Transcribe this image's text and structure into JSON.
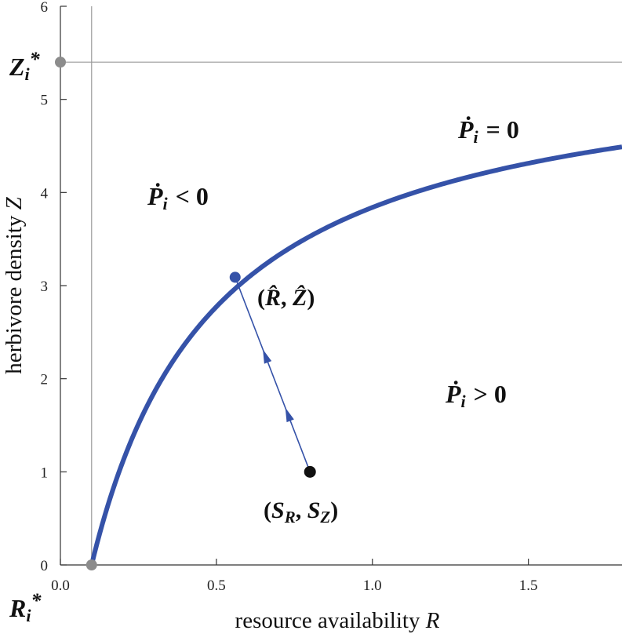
{
  "chart_data": {
    "type": "line",
    "xlabel": "resource availability",
    "xlabel_var": "R",
    "ylabel": "herbivore density",
    "ylabel_var": "Z",
    "xlim": [
      0,
      1.8
    ],
    "ylim": [
      0,
      6
    ],
    "xticks": [
      "0.0",
      "0.5",
      "1.0",
      "1.5"
    ],
    "yticks": [
      "0",
      "1",
      "2",
      "3",
      "4",
      "5",
      "6"
    ],
    "grid": false,
    "colors": {
      "curve": "#3552a8",
      "marker_gray": "#8c8c8c",
      "point": "#111111",
      "refline": "#9a9a9a"
    },
    "series": [
      {
        "x": [
          0.1,
          0.12,
          0.15,
          0.2,
          0.3,
          0.4,
          0.5,
          0.56,
          0.7,
          0.9,
          1.1,
          1.3,
          1.5,
          1.8
        ],
        "y": [
          0.0,
          0.54,
          1.15,
          1.82,
          2.6,
          3.0,
          3.3,
          3.09,
          3.63,
          3.95,
          4.15,
          4.29,
          4.38,
          4.49
        ]
      }
    ],
    "reference_lines": {
      "R_star": 0.1,
      "Z_star": 5.4
    },
    "points": {
      "R_star_marker": {
        "x": 0.1,
        "y": 0
      },
      "Z_star_marker": {
        "x": 0,
        "y": 5.4
      },
      "equilibrium": {
        "x": 0.56,
        "y": 3.09
      },
      "supply": {
        "x": 0.8,
        "y": 1.0
      }
    },
    "labels": {
      "z_star": {
        "main": "Z",
        "sub": "i",
        "sup": "*"
      },
      "r_star": {
        "main": "R",
        "sub": "i",
        "sup": "*"
      },
      "p_zero": {
        "main": "Ṗ",
        "sub": "i",
        "rel": "= 0"
      },
      "p_neg": {
        "main": "Ṗ",
        "sub": "i",
        "rel": "< 0"
      },
      "p_pos": {
        "main": "Ṗ",
        "sub": "i",
        "rel": "> 0"
      },
      "equilibrium": {
        "open": "(",
        "a": "R̂",
        "sep": ", ",
        "b": "Ẑ",
        "close": ")"
      },
      "supply": {
        "open": "(",
        "a": "S",
        "a_sub": "R",
        "sep": ", ",
        "b": "S",
        "b_sub": "Z",
        "close": ")"
      }
    }
  }
}
